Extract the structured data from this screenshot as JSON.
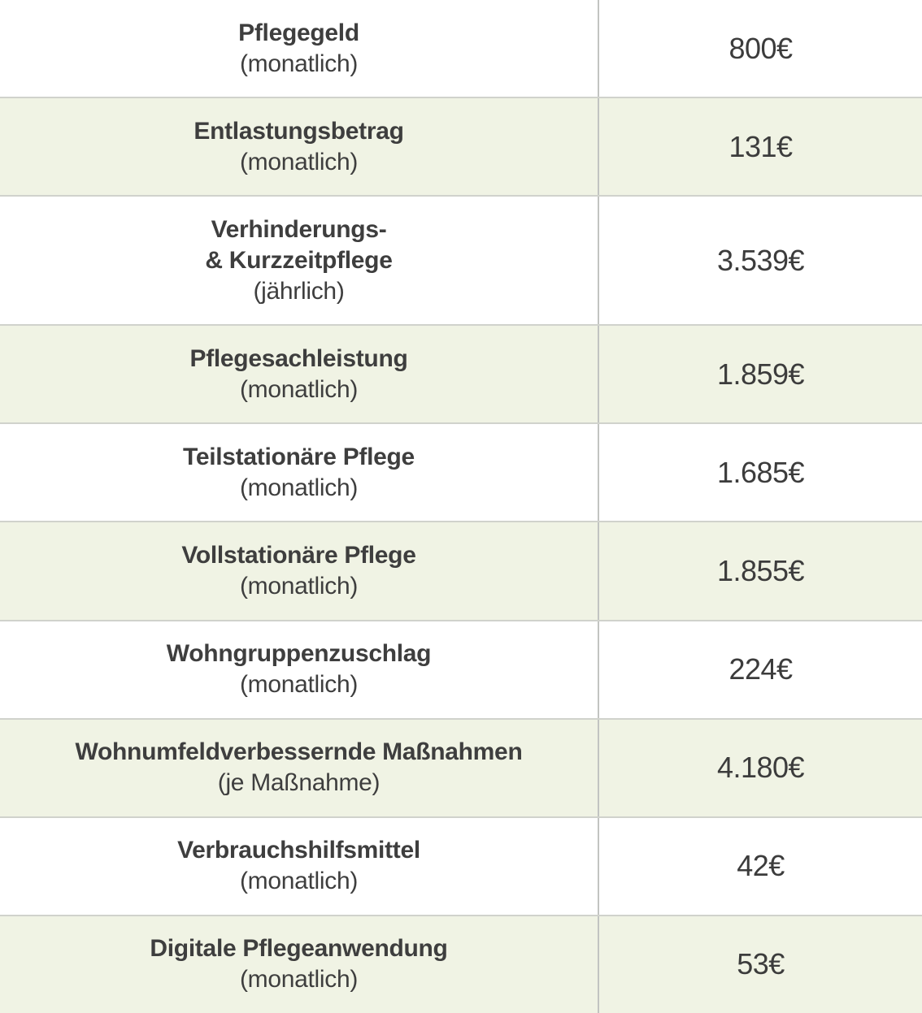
{
  "table": {
    "name": "pflegeleistungen-tabelle",
    "rows": [
      {
        "label_lines": [
          "Pflegegeld"
        ],
        "frequency": "(monatlich)",
        "amount": "800€",
        "shaded": false
      },
      {
        "label_lines": [
          "Entlastungsbetrag"
        ],
        "frequency": "(monatlich)",
        "amount": "131€",
        "shaded": true
      },
      {
        "label_lines": [
          "Verhinderungs-",
          "& Kurzzeitpflege"
        ],
        "frequency": "(jährlich)",
        "amount": "3.539€",
        "shaded": false
      },
      {
        "label_lines": [
          "Pflegesachleistung"
        ],
        "frequency": "(monatlich)",
        "amount": "1.859€",
        "shaded": true
      },
      {
        "label_lines": [
          "Teilstationäre Pflege"
        ],
        "frequency": "(monatlich)",
        "amount": "1.685€",
        "shaded": false
      },
      {
        "label_lines": [
          "Vollstationäre Pflege"
        ],
        "frequency": "(monatlich)",
        "amount": "1.855€",
        "shaded": true
      },
      {
        "label_lines": [
          "Wohngruppenzuschlag"
        ],
        "frequency": "(monatlich)",
        "amount": "224€",
        "shaded": false
      },
      {
        "label_lines": [
          "Wohnumfeldverbessernde Maßnahmen"
        ],
        "frequency": "(je Maßnahme)",
        "amount": "4.180€",
        "shaded": true
      },
      {
        "label_lines": [
          "Verbrauchshilfsmittel"
        ],
        "frequency": "(monatlich)",
        "amount": "42€",
        "shaded": false
      },
      {
        "label_lines": [
          "Digitale Pflegeanwendung"
        ],
        "frequency": "(monatlich)",
        "amount": "53€",
        "shaded": true
      }
    ]
  },
  "colors": {
    "row_plain": "#ffffff",
    "row_shaded": "#f0f3e4",
    "border_horizontal": "#d0d2cc",
    "border_vertical": "#c2c4c1",
    "text": "#3e3e3e"
  }
}
